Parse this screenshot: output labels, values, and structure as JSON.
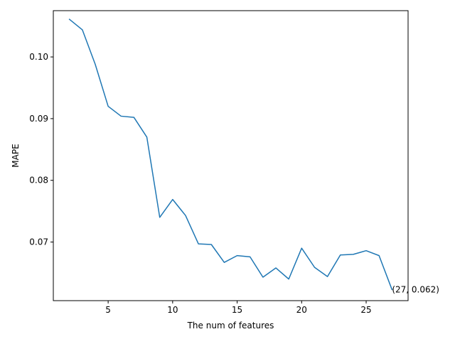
{
  "chart_data": {
    "type": "line",
    "title": "",
    "xlabel": "The num of features",
    "ylabel": "MAPE",
    "xlim": [
      0.75,
      28.25
    ],
    "ylim": [
      0.0605,
      0.1075
    ],
    "xticks": [
      5,
      10,
      15,
      20,
      25
    ],
    "xtick_labels": [
      "5",
      "10",
      "15",
      "20",
      "25"
    ],
    "yticks": [
      0.07,
      0.08,
      0.09,
      0.1
    ],
    "ytick_labels": [
      "0.07",
      "0.08",
      "0.09",
      "0.10"
    ],
    "grid": false,
    "legend": null,
    "series": [
      {
        "color": "#1f77b4",
        "x": [
          2,
          3,
          4,
          5,
          6,
          7,
          8,
          9,
          10,
          11,
          12,
          13,
          14,
          15,
          16,
          17,
          18,
          19,
          20,
          21,
          22,
          23,
          24,
          25,
          26,
          27
        ],
        "y": [
          0.1061,
          0.1044,
          0.0988,
          0.092,
          0.0904,
          0.0902,
          0.087,
          0.074,
          0.0769,
          0.0743,
          0.0697,
          0.0696,
          0.0667,
          0.0678,
          0.0676,
          0.0643,
          0.0658,
          0.064,
          0.069,
          0.0659,
          0.0644,
          0.0679,
          0.068,
          0.0686,
          0.0678,
          0.0623
        ]
      }
    ],
    "annotations": [
      {
        "text": "(27, 0.062)",
        "x": 27,
        "y": 0.0623
      }
    ]
  }
}
